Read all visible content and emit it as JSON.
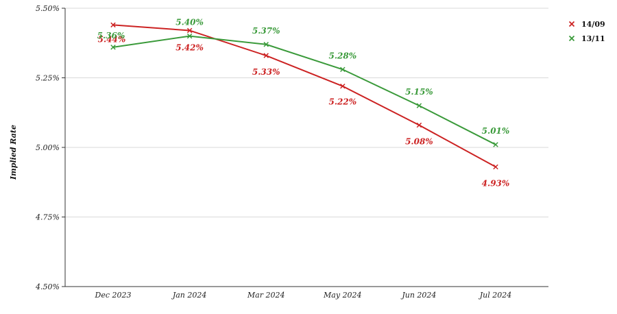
{
  "chart_data": {
    "type": "line",
    "title": "",
    "xlabel": "",
    "ylabel": "Implied Rate",
    "categories": [
      "Dec 2023",
      "Jan 2024",
      "Mar 2024",
      "May 2024",
      "Jun 2024",
      "Jul 2024"
    ],
    "ylim": [
      4.5,
      5.5
    ],
    "yticks": [
      "4.50%",
      "4.75%",
      "5.00%",
      "5.25%",
      "5.50%"
    ],
    "ytick_values": [
      4.5,
      4.75,
      5.0,
      5.25,
      5.5
    ],
    "grid": true,
    "legend_position": "top-right",
    "series": [
      {
        "name": "14/09",
        "color": "#cc2222",
        "values": [
          5.44,
          5.42,
          5.33,
          5.22,
          5.08,
          4.93
        ],
        "labels": [
          "5.44%",
          "5.42%",
          "5.33%",
          "5.22%",
          "5.08%",
          "4.93%"
        ]
      },
      {
        "name": "13/11",
        "color": "#3a9a3a",
        "values": [
          5.36,
          5.4,
          5.37,
          5.28,
          5.15,
          5.01
        ],
        "labels": [
          "5.36%",
          "5.40%",
          "5.37%",
          "5.28%",
          "5.15%",
          "5.01%"
        ]
      }
    ]
  }
}
